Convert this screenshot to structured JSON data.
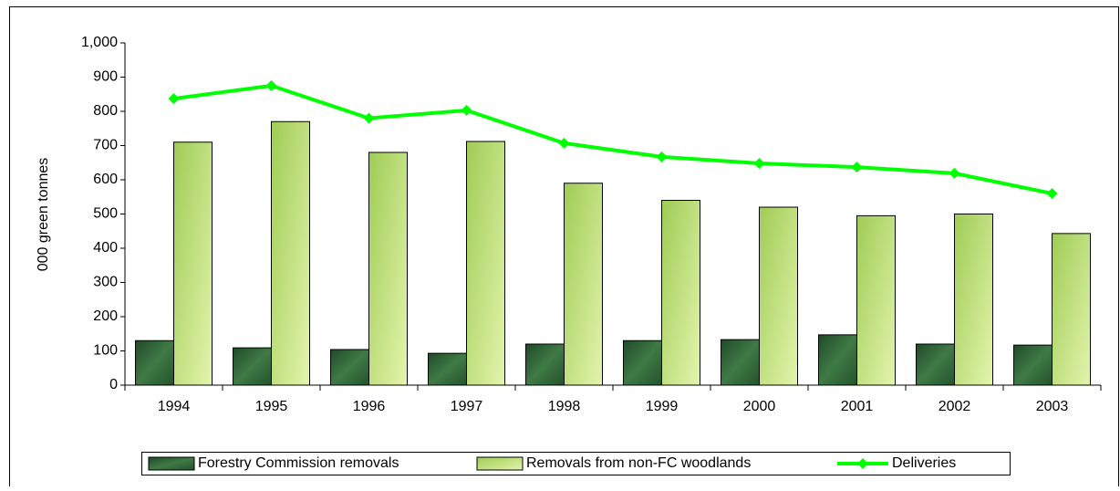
{
  "chart_data": {
    "type": "bar",
    "y_label": "000 green tonnes",
    "categories": [
      "1994",
      "1995",
      "1996",
      "1997",
      "1998",
      "1999",
      "2000",
      "2001",
      "2002",
      "2003"
    ],
    "series": [
      {
        "name": "Forestry Commission removals",
        "type": "bar",
        "color": "#2e5e34",
        "values": [
          130,
          109,
          104,
          93,
          120,
          130,
          133,
          147,
          120,
          117
        ]
      },
      {
        "name": "Removals from non-FC woodlands",
        "type": "bar",
        "color": "#b9dc73",
        "values": [
          710,
          770,
          680,
          712,
          590,
          540,
          520,
          495,
          500,
          443
        ]
      },
      {
        "name": "Deliveries",
        "type": "line",
        "color": "#00ff00",
        "values": [
          837,
          875,
          780,
          803,
          707,
          667,
          648,
          637,
          619,
          560
        ]
      }
    ],
    "ylim": [
      0,
      1000
    ],
    "yticks": [
      0,
      100,
      200,
      300,
      400,
      500,
      600,
      700,
      800,
      900,
      {
        "value": 1000,
        "label": "1,000"
      }
    ],
    "legend": "bottom"
  }
}
